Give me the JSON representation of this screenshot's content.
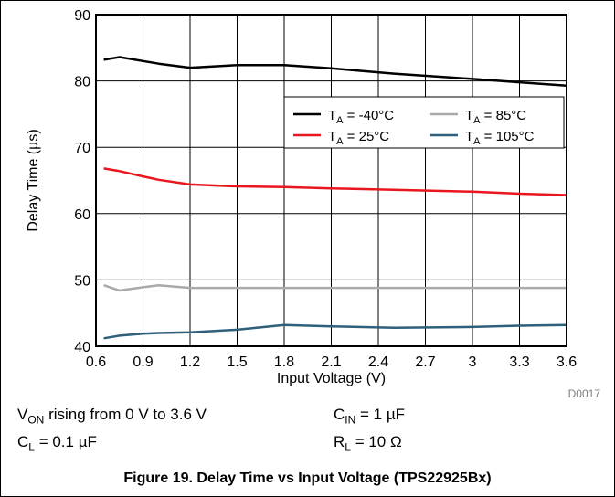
{
  "chart_data": {
    "type": "line",
    "xlabel": "Input Voltage (V)",
    "ylabel": "Delay Time (µs)",
    "xlim": [
      0.6,
      3.6
    ],
    "ylim": [
      40,
      90
    ],
    "xticks": [
      0.6,
      0.9,
      1.2,
      1.5,
      1.8,
      2.1,
      2.4,
      2.7,
      3,
      3.3,
      3.6
    ],
    "xtick_labels": [
      "0.6",
      "0.9",
      "1.2",
      "1.5",
      "1.8",
      "2.1",
      "2.4",
      "2.7",
      "3",
      "3.3",
      "3.6"
    ],
    "yticks": [
      40,
      50,
      60,
      70,
      80,
      90
    ],
    "ytick_labels": [
      "40",
      "50",
      "60",
      "70",
      "80",
      "90"
    ],
    "grid": true,
    "legend_position": "top-right",
    "series": [
      {
        "name": "-40°C",
        "legend_main": "T",
        "legend_sub": "A",
        "legend_rest": " = -40°C",
        "color": "#000000",
        "x": [
          0.65,
          0.75,
          0.9,
          1.0,
          1.2,
          1.5,
          1.8,
          2.1,
          2.5,
          3.0,
          3.3,
          3.6
        ],
        "y": [
          83.2,
          83.6,
          83.0,
          82.6,
          82.0,
          82.4,
          82.4,
          81.9,
          81.1,
          80.3,
          79.8,
          79.3
        ]
      },
      {
        "name": "85°C",
        "legend_main": "T",
        "legend_sub": "A",
        "legend_rest": " = 85°C",
        "color": "#aaaaaa",
        "x": [
          0.65,
          0.75,
          0.9,
          1.0,
          1.2,
          1.5,
          1.8,
          2.1,
          2.5,
          3.0,
          3.3,
          3.6
        ],
        "y": [
          49.2,
          48.4,
          48.9,
          49.2,
          48.8,
          48.8,
          48.8,
          48.8,
          48.8,
          48.8,
          48.8,
          48.8
        ]
      },
      {
        "name": "25°C",
        "legend_main": "T",
        "legend_sub": "A",
        "legend_rest": " = 25°C",
        "color": "#e8171d",
        "x": [
          0.65,
          0.75,
          0.9,
          1.0,
          1.2,
          1.5,
          1.8,
          2.1,
          2.5,
          3.0,
          3.3,
          3.6
        ],
        "y": [
          66.8,
          66.4,
          65.6,
          65.1,
          64.4,
          64.1,
          64.0,
          63.8,
          63.6,
          63.3,
          63.0,
          62.8
        ]
      },
      {
        "name": "105°C",
        "legend_main": "T",
        "legend_sub": "A",
        "legend_rest": " = 105°C",
        "color": "#2e5f7b",
        "x": [
          0.65,
          0.75,
          0.9,
          1.0,
          1.2,
          1.5,
          1.8,
          2.1,
          2.5,
          3.0,
          3.3,
          3.6
        ],
        "y": [
          41.2,
          41.6,
          41.9,
          42.0,
          42.1,
          42.5,
          43.2,
          43.0,
          42.8,
          42.9,
          43.1,
          43.2
        ]
      }
    ],
    "code": "D0017"
  },
  "conditions": {
    "von_main": "V",
    "von_sub": "ON",
    "von_rest": " rising from 0 V to 3.6 V",
    "cin_main": "C",
    "cin_sub": "IN",
    "cin_rest": " = 1 µF",
    "cl_main": "C",
    "cl_sub": "L",
    "cl_rest": " = 0.1 µF",
    "rl_main": "R",
    "rl_sub": "L",
    "rl_rest": " = 10 Ω"
  },
  "caption": "Figure 19. Delay Time vs Input Voltage (TPS22925Bx)"
}
